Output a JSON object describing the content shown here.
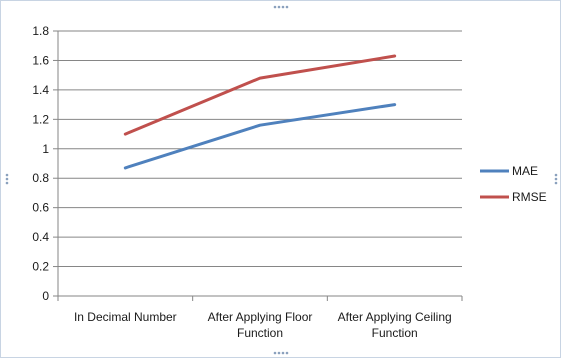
{
  "chart_data": {
    "type": "line",
    "categories": [
      [
        "In Decimal Number"
      ],
      [
        "After Applying Floor",
        "Function"
      ],
      [
        "After Applying Ceiling",
        "Function"
      ]
    ],
    "ylim": [
      0,
      1.8
    ],
    "yticks": [
      "0",
      "0.2",
      "0.4",
      "0.6",
      "0.8",
      "1",
      "1.2",
      "1.4",
      "1.6",
      "1.8"
    ],
    "grid": true,
    "legend_position": "right",
    "series": [
      {
        "name": "MAE",
        "color": "#4f81bd",
        "values": [
          0.87,
          1.16,
          1.3
        ]
      },
      {
        "name": "RMSE",
        "color": "#c0504d",
        "values": [
          1.1,
          1.48,
          1.63
        ]
      }
    ]
  }
}
